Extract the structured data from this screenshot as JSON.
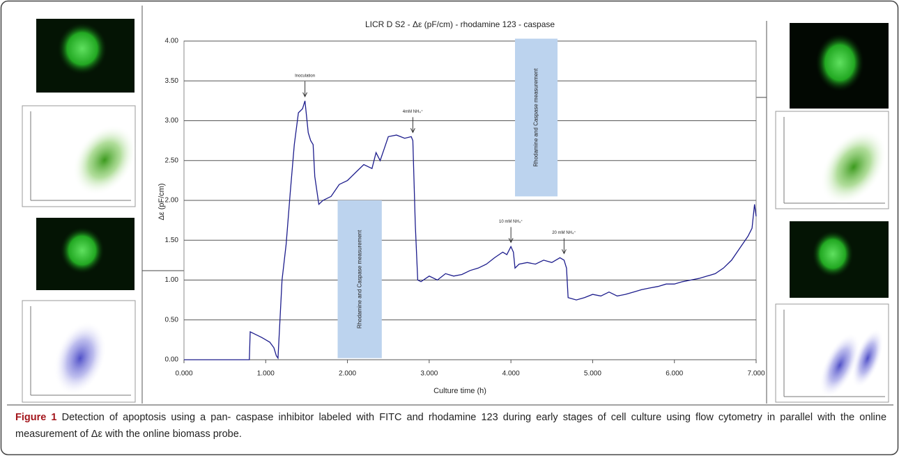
{
  "chart_data": {
    "type": "line",
    "title": "LICR D S2 - Δε (pF/cm) - rhodamine 123 - caspase",
    "xlabel": "Culture time (h)",
    "ylabel": "Δε (pF/cm)",
    "color": "#1c1c8c",
    "grid": true,
    "xlim": [
      0,
      7
    ],
    "ylim": [
      0,
      4
    ],
    "xticks": [
      {
        "value": 0,
        "label": "0.000"
      },
      {
        "value": 1,
        "label": "1.000"
      },
      {
        "value": 2,
        "label": "2.000"
      },
      {
        "value": 3,
        "label": "3.000"
      },
      {
        "value": 4,
        "label": "4.000"
      },
      {
        "value": 5,
        "label": "5.000"
      },
      {
        "value": 6,
        "label": "6.000"
      },
      {
        "value": 7,
        "label": "7.000"
      }
    ],
    "yticks": [
      {
        "value": 0,
        "label": "0.00"
      },
      {
        "value": 0.5,
        "label": "0.50"
      },
      {
        "value": 1,
        "label": "1.00"
      },
      {
        "value": 1.5,
        "label": "1.50"
      },
      {
        "value": 2,
        "label": "2.00"
      },
      {
        "value": 2.5,
        "label": "2.50"
      },
      {
        "value": 3,
        "label": "3.00"
      },
      {
        "value": 3.5,
        "label": "3.50"
      },
      {
        "value": 4,
        "label": "4.00"
      }
    ],
    "x": [
      0,
      0.8,
      0.81,
      0.85,
      0.95,
      1.05,
      1.1,
      1.13,
      1.15,
      1.2,
      1.25,
      1.3,
      1.35,
      1.4,
      1.45,
      1.48,
      1.52,
      1.55,
      1.58,
      1.6,
      1.65,
      1.7,
      1.8,
      1.9,
      2.0,
      2.1,
      2.2,
      2.3,
      2.35,
      2.4,
      2.45,
      2.5,
      2.6,
      2.7,
      2.78,
      2.8,
      2.83,
      2.86,
      2.9,
      3.0,
      3.1,
      3.2,
      3.3,
      3.4,
      3.5,
      3.6,
      3.7,
      3.8,
      3.9,
      3.95,
      4.0,
      4.03,
      4.05,
      4.1,
      4.2,
      4.3,
      4.4,
      4.5,
      4.6,
      4.65,
      4.68,
      4.7,
      4.8,
      4.9,
      5.0,
      5.1,
      5.2,
      5.3,
      5.4,
      5.5,
      5.6,
      5.7,
      5.8,
      5.9,
      6.0,
      6.1,
      6.2,
      6.3,
      6.4,
      6.5,
      6.6,
      6.7,
      6.8,
      6.9,
      6.95,
      6.98,
      7.0
    ],
    "values": [
      0,
      0,
      0.35,
      0.33,
      0.28,
      0.22,
      0.15,
      0.05,
      0.02,
      1.0,
      1.45,
      2.1,
      2.7,
      3.1,
      3.15,
      3.25,
      2.85,
      2.75,
      2.7,
      2.3,
      1.95,
      2.0,
      2.05,
      2.2,
      2.25,
      2.35,
      2.45,
      2.4,
      2.6,
      2.5,
      2.65,
      2.8,
      2.82,
      2.78,
      2.8,
      2.75,
      1.7,
      1.0,
      0.98,
      1.05,
      1.0,
      1.08,
      1.05,
      1.07,
      1.12,
      1.15,
      1.2,
      1.28,
      1.35,
      1.32,
      1.42,
      1.35,
      1.15,
      1.2,
      1.22,
      1.2,
      1.25,
      1.22,
      1.28,
      1.25,
      1.15,
      0.78,
      0.75,
      0.78,
      0.82,
      0.8,
      0.85,
      0.8,
      0.82,
      0.85,
      0.88,
      0.9,
      0.92,
      0.95,
      0.95,
      0.98,
      1.0,
      1.02,
      1.05,
      1.08,
      1.15,
      1.25,
      1.4,
      1.55,
      1.65,
      1.95,
      1.8
    ],
    "annotations": [
      {
        "text": "Inoculation",
        "x": 1.48,
        "y": 3.25
      },
      {
        "text": "4mM NH₄⁺",
        "x": 2.8,
        "y": 2.8
      },
      {
        "text": "10 mM NH₄⁺",
        "x": 4.0,
        "y": 1.42
      },
      {
        "text": "20 mM NH₄⁺",
        "x": 4.65,
        "y": 1.28
      }
    ],
    "shaded_regions": [
      {
        "label": "Rhodamine and Caspase measurement",
        "xlim": [
          1.88,
          2.42
        ],
        "ylim": [
          0.02,
          2.0
        ]
      },
      {
        "label": "Rhodamine and Caspase measurement",
        "xlim": [
          4.05,
          4.57
        ],
        "ylim": [
          2.05,
          4.03
        ]
      }
    ]
  },
  "caption": {
    "label": "Figure 1",
    "text": "Detection of apoptosis using a pan- caspase inhibitor labeled with FITC and rhodamine 123 during early stages of cell culture using flow cytometry in parallel with the online measurement of Δε with the online biomass probe."
  }
}
